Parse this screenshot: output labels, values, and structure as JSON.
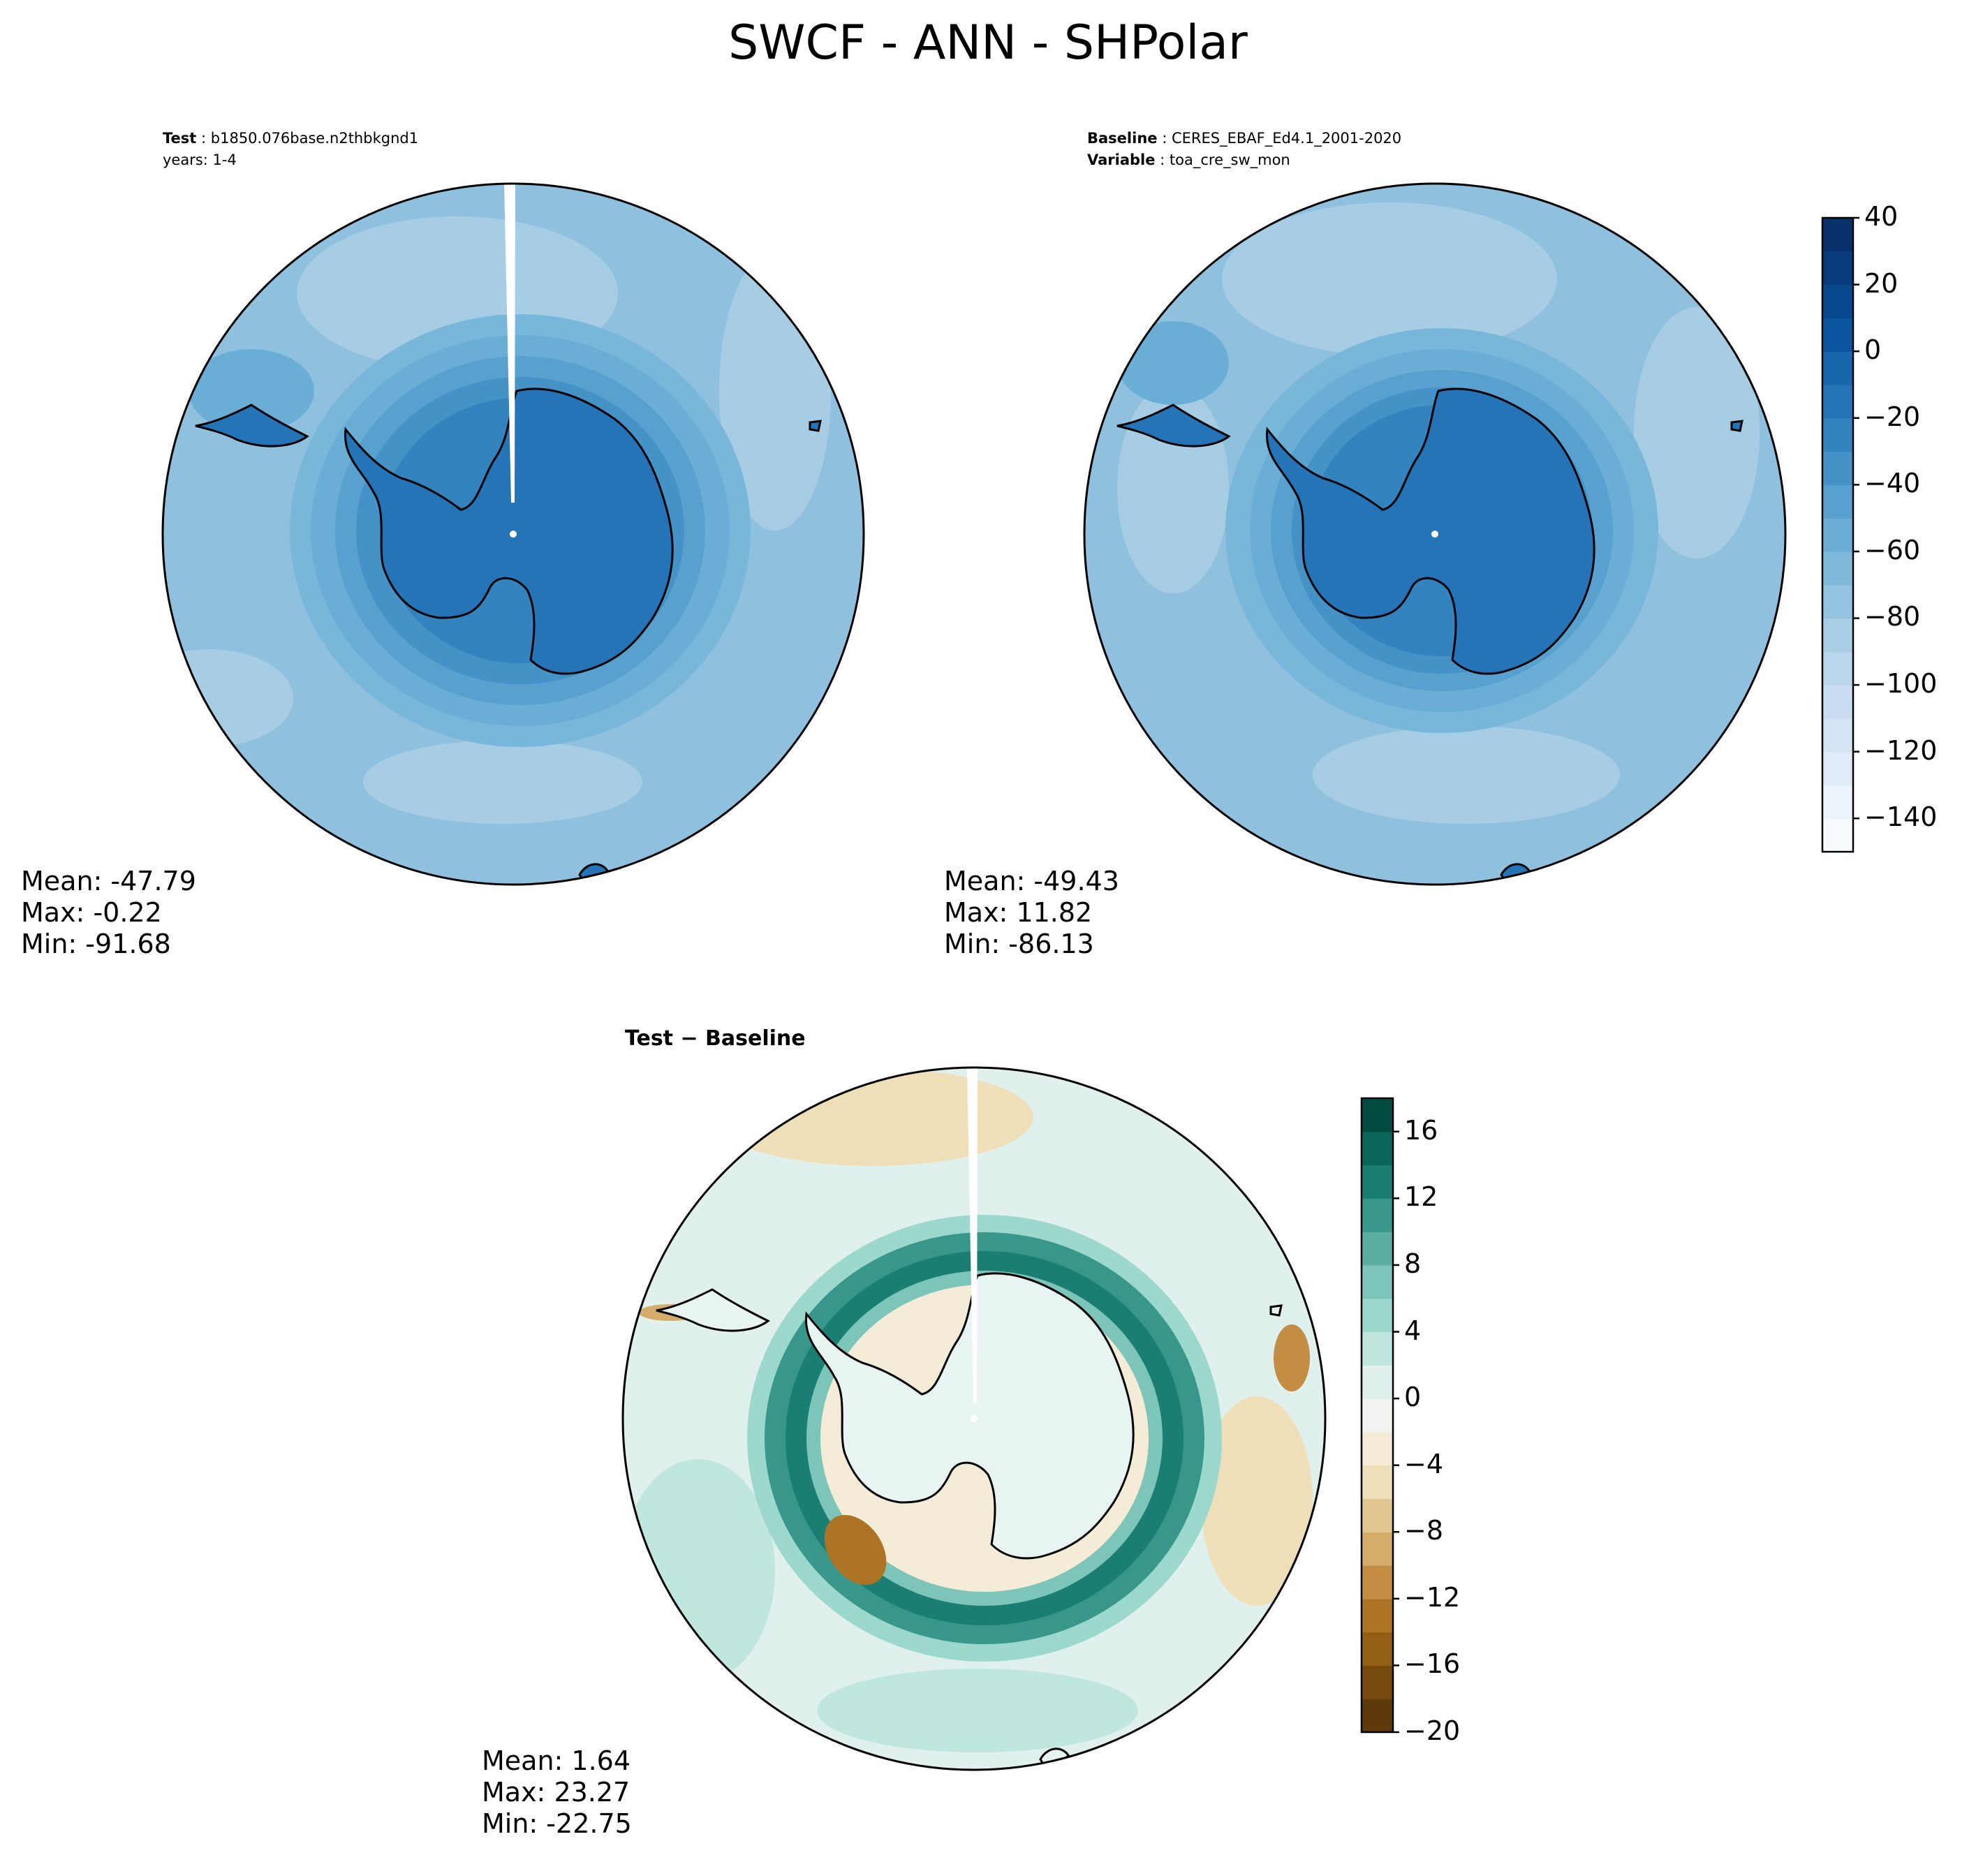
{
  "figure": {
    "title": "SWCF - ANN - SHPolar"
  },
  "panels": {
    "test": {
      "label_key": "Test",
      "label_value": "b1850.076base.n2thbkgnd1",
      "years": "years: 1-4",
      "stats": {
        "mean": "Mean: -47.79",
        "max": "Max: -0.22",
        "min": "Min: -91.68"
      }
    },
    "baseline": {
      "label_key": "Baseline",
      "label_value": "CERES_EBAF_Ed4.1_2001-2020",
      "variable_key": "Variable",
      "variable_value": "toa_cre_sw_mon",
      "stats": {
        "mean": "Mean: -49.43",
        "max": "Max: 11.82",
        "min": "Min: -86.13"
      }
    },
    "diff": {
      "title": "Test − Baseline",
      "stats": {
        "mean": "Mean:  1.64",
        "max": "Max: 23.27",
        "min": "Min: -22.75"
      }
    }
  },
  "chart_data": [
    {
      "type": "map",
      "panel": "test",
      "projection": "south polar stereographic",
      "variable": "SWCF",
      "colormap": "Blues (reversed)",
      "mean": -47.79,
      "max": -0.22,
      "min": -91.68
    },
    {
      "type": "map",
      "panel": "baseline",
      "projection": "south polar stereographic",
      "variable": "toa_cre_sw_mon",
      "colormap": "Blues (reversed)",
      "mean": -49.43,
      "max": 11.82,
      "min": -86.13
    },
    {
      "type": "map",
      "panel": "diff",
      "projection": "south polar stereographic",
      "colormap": "BrBG",
      "mean": 1.64,
      "max": 23.27,
      "min": -22.75
    }
  ],
  "colorbars": {
    "main": {
      "range": [
        -150,
        40
      ],
      "levels": [
        -150,
        -140,
        -130,
        -120,
        -110,
        -100,
        -90,
        -80,
        -70,
        -60,
        -50,
        -40,
        -30,
        -20,
        -10,
        0,
        10,
        20,
        30,
        40
      ],
      "ticks": [
        40,
        20,
        0,
        -20,
        -40,
        -60,
        -80,
        -100,
        -120,
        -140
      ],
      "tick_labels": [
        "40",
        "20",
        "0",
        "−20",
        "−40",
        "−60",
        "−80",
        "−100",
        "−120",
        "−140"
      ],
      "colors": [
        "#f7fbff",
        "#ebf3fb",
        "#e0ecf8",
        "#d4e4f4",
        "#c8ddf0",
        "#bad6eb",
        "#a9cfe5",
        "#94c4df",
        "#7fb9da",
        "#6aaed6",
        "#58a1cf",
        "#4592c6",
        "#3383be",
        "#2474b7",
        "#1765ab",
        "#0b559f",
        "#08488e",
        "#083b7c",
        "#08306b"
      ]
    },
    "diff": {
      "range": [
        -20,
        18
      ],
      "levels": [
        -20,
        -18,
        -16,
        -14,
        -12,
        -10,
        -8,
        -6,
        -4,
        -2,
        0,
        2,
        4,
        6,
        8,
        10,
        12,
        14,
        16,
        18
      ],
      "ticks": [
        16,
        12,
        8,
        4,
        0,
        -4,
        -8,
        -12,
        -16,
        -20
      ],
      "tick_labels": [
        "16",
        "12",
        "8",
        "4",
        "0",
        "−4",
        "−8",
        "−12",
        "−16",
        "−20"
      ],
      "colors": [
        "#5d390c",
        "#774b0e",
        "#925f14",
        "#ad7426",
        "#c38e43",
        "#d5ac6a",
        "#e2c791",
        "#efdfb8",
        "#f5ecd7",
        "#f3f3f1",
        "#dff0ed",
        "#bfe6df",
        "#9dd8cc",
        "#7cc5b8",
        "#5aafa1",
        "#38968a",
        "#1b7e73",
        "#096559",
        "#014c40"
      ]
    }
  }
}
